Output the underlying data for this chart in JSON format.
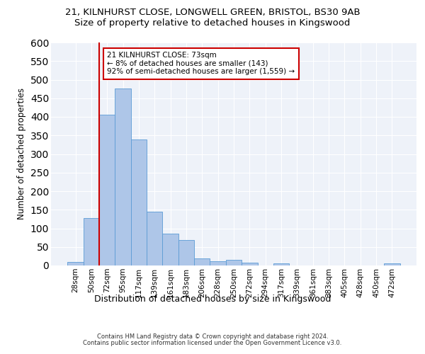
{
  "title_line1": "21, KILNHURST CLOSE, LONGWELL GREEN, BRISTOL, BS30 9AB",
  "title_line2": "Size of property relative to detached houses in Kingswood",
  "xlabel": "Distribution of detached houses by size in Kingswood",
  "ylabel": "Number of detached properties",
  "footer_line1": "Contains HM Land Registry data © Crown copyright and database right 2024.",
  "footer_line2": "Contains public sector information licensed under the Open Government Licence v3.0.",
  "bar_labels": [
    "28sqm",
    "50sqm",
    "72sqm",
    "95sqm",
    "117sqm",
    "139sqm",
    "161sqm",
    "183sqm",
    "206sqm",
    "228sqm",
    "250sqm",
    "272sqm",
    "294sqm",
    "317sqm",
    "339sqm",
    "361sqm",
    "383sqm",
    "405sqm",
    "428sqm",
    "450sqm",
    "472sqm"
  ],
  "bar_values": [
    9,
    128,
    405,
    476,
    340,
    145,
    85,
    68,
    19,
    12,
    15,
    8,
    0,
    5,
    0,
    0,
    0,
    0,
    0,
    0,
    5
  ],
  "bar_color": "#aec6e8",
  "bar_edgecolor": "#5b9bd5",
  "annotation_text": "21 KILNHURST CLOSE: 73sqm\n← 8% of detached houses are smaller (143)\n92% of semi-detached houses are larger (1,559) →",
  "vline_color": "#cc0000",
  "annotation_box_edgecolor": "#cc0000",
  "ylim": [
    0,
    600
  ],
  "yticks": [
    0,
    50,
    100,
    150,
    200,
    250,
    300,
    350,
    400,
    450,
    500,
    550,
    600
  ],
  "background_color": "#eef2f9",
  "grid_color": "#ffffff",
  "title1_fontsize": 9.5,
  "title2_fontsize": 9.5,
  "xlabel_fontsize": 9,
  "ylabel_fontsize": 8.5,
  "footer_fontsize": 6.0,
  "tick_fontsize": 7.5,
  "annot_fontsize": 7.5
}
